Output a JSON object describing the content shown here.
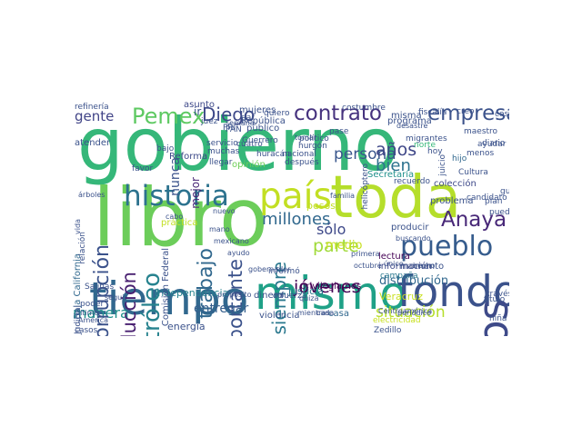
{
  "words": [
    {
      "text": "gobierno",
      "color": "#35b779"
    },
    {
      "text": "libro",
      "color": "#6ccd5a"
    },
    {
      "text": "toda",
      "color": "#b5de2b"
    },
    {
      "text": "tiempo",
      "color": "#31688e"
    },
    {
      "text": "mismo",
      "color": "#1fa187"
    },
    {
      "text": "fondo",
      "color": "#3b528b"
    },
    {
      "text": "Unidos",
      "color": "#3e4a89"
    },
    {
      "text": "país",
      "color": "#c2df23"
    },
    {
      "text": "historia",
      "color": "#2c728e"
    },
    {
      "text": "empresa",
      "color": "#3b528b"
    },
    {
      "text": "contrato",
      "color": "#46327e"
    },
    {
      "text": "pueblo",
      "color": "#365c8d"
    },
    {
      "text": "Anaya",
      "color": "#482878"
    },
    {
      "text": "Pemex",
      "color": "#5ec962"
    },
    {
      "text": "Diego",
      "color": "#3e4989"
    },
    {
      "text": "petróleo",
      "color": "#26828e"
    },
    {
      "text": "jóvenes",
      "color": "#440154"
    },
    {
      "text": "millones",
      "color": "#31688e"
    },
    {
      "text": "persona",
      "color": "#39568c"
    },
    {
      "text": "manera",
      "color": "#21918c"
    },
    {
      "text": "situación",
      "color": "#b5de2b"
    },
    {
      "text": "trabajo",
      "color": "#31688e"
    },
    {
      "text": "importante",
      "color": "#3b528b"
    },
    {
      "text": "corrupción",
      "color": "#3b528b"
    },
    {
      "text": "producción",
      "color": "#481f70"
    },
    {
      "text": "siempre",
      "color": "#2a788e"
    },
    {
      "text": "años",
      "color": "#3f4788"
    },
    {
      "text": "bien",
      "color": "#2c728e"
    },
    {
      "text": "parte",
      "color": "#a0da39"
    },
    {
      "text": "sólo",
      "color": "#3e4989"
    },
    {
      "text": "gente",
      "color": "#414487"
    },
    {
      "text": "medio",
      "color": "#c8e020"
    },
    {
      "text": "distribución",
      "color": "#31688e"
    },
    {
      "text": "entregar",
      "color": "#355f8d"
    },
    {
      "text": "Independencia",
      "color": "#26828e"
    },
    {
      "text": "Veracruz",
      "color": "#c8e020"
    },
    {
      "text": "nunca",
      "color": "#3b528b"
    },
    {
      "text": "ir",
      "color": "#3b528b"
    },
    {
      "text": "asunto",
      "color": "#3e4989"
    },
    {
      "text": "Reforma",
      "color": "#3e4a89"
    },
    {
      "text": "mejor",
      "color": "#482475"
    },
    {
      "text": "justicia",
      "color": "#2a788e"
    },
    {
      "text": "pesos",
      "color": "#c2df23"
    },
    {
      "text": "privilegiamos",
      "color": "#440154"
    },
    {
      "text": "dinero",
      "color": "#3b528b"
    },
    {
      "text": "fuerza",
      "color": "#3b528b"
    },
    {
      "text": "casa",
      "color": "#31688e"
    },
    {
      "text": "Secretaría",
      "color": "#21918c"
    },
    {
      "text": "colección",
      "color": "#3e4989"
    },
    {
      "text": "problema",
      "color": "#3b528b"
    },
    {
      "text": "lectura",
      "color": "#440154"
    },
    {
      "text": "información",
      "color": "#3e4989"
    },
    {
      "text": "campaña",
      "color": "#2a788e"
    },
    {
      "text": "energía",
      "color": "#3b528b"
    },
    {
      "text": "Baja California",
      "color": "#31688e"
    },
    {
      "text": "Comisión Federal",
      "color": "#3b528b"
    },
    {
      "text": "práctica",
      "color": "#c2df23"
    },
    {
      "text": "violencia",
      "color": "#3b528b"
    },
    {
      "text": "electricidad",
      "color": "#c8e020"
    },
    {
      "text": "relación",
      "color": "#3b528b"
    },
    {
      "text": "Salinas",
      "color": "#3b528b"
    },
    {
      "text": "opinión",
      "color": "#6ece58"
    },
    {
      "text": "público",
      "color": "#3b528b"
    },
    {
      "text": "República",
      "color": "#3b528b"
    },
    {
      "text": "hijo",
      "color": "#31688e"
    },
    {
      "text": "plan",
      "color": "#3b528b"
    },
    {
      "text": "norte",
      "color": "#35b779"
    },
    {
      "text": "hoy",
      "color": "#3b528b"
    },
    {
      "text": "Zedillo",
      "color": "#3b528b"
    },
    {
      "text": "producir",
      "color": "#3b528b"
    },
    {
      "text": "momento",
      "color": "#3b528b"
    },
    {
      "text": "político",
      "color": "#3b528b"
    },
    {
      "text": "nacional",
      "color": "#3b528b"
    },
    {
      "text": "cuatro",
      "color": "#3b528b"
    },
    {
      "text": "mujeres",
      "color": "#3b528b"
    },
    {
      "text": "helicóptero",
      "color": "#3b528b"
    },
    {
      "text": "costumbre",
      "color": "#3b528b"
    },
    {
      "text": "programa",
      "color": "#3b528b"
    },
    {
      "text": "juicio",
      "color": "#3b528b"
    },
    {
      "text": "costo",
      "color": "#3b528b"
    },
    {
      "text": "refinería",
      "color": "#3b528b"
    },
    {
      "text": "atender",
      "color": "#3b528b"
    },
    {
      "text": "pase",
      "color": "#3b528b"
    },
    {
      "text": "misma",
      "color": "#3b528b"
    },
    {
      "text": "creo",
      "color": "#3b528b"
    },
    {
      "text": "maestro",
      "color": "#3b528b"
    },
    {
      "text": "fiscalía",
      "color": "#3b528b"
    },
    {
      "text": "candidato",
      "color": "#3b528b"
    },
    {
      "text": "guerra",
      "color": "#3b528b"
    },
    {
      "text": "menos",
      "color": "#3b528b"
    },
    {
      "text": "Cultura",
      "color": "#3b528b"
    },
    {
      "text": "ayudar",
      "color": "#3b528b"
    },
    {
      "text": "diario",
      "color": "#3b528b"
    },
    {
      "text": "pueden",
      "color": "#3b528b"
    },
    {
      "text": "través",
      "color": "#3b528b"
    },
    {
      "text": "niña",
      "color": "#3b528b"
    },
    {
      "text": "título",
      "color": "#3b528b"
    },
    {
      "text": "migrantes",
      "color": "#3b528b"
    },
    {
      "text": "hurgón",
      "color": "#3b528b"
    },
    {
      "text": "después",
      "color": "#3b528b"
    },
    {
      "text": "Guerrero",
      "color": "#3b528b"
    },
    {
      "text": "servicio",
      "color": "#3b528b"
    },
    {
      "text": "muchas",
      "color": "#3b528b"
    },
    {
      "text": "llegar",
      "color": "#3b528b"
    },
    {
      "text": "bajo",
      "color": "#3b528b"
    },
    {
      "text": "favor",
      "color": "#3b528b"
    },
    {
      "text": "quiero",
      "color": "#3b528b"
    },
    {
      "text": "dar",
      "color": "#3b528b"
    },
    {
      "text": "PAN",
      "color": "#3b528b"
    },
    {
      "text": "PRI",
      "color": "#3b528b"
    },
    {
      "text": "juez",
      "color": "#3b528b"
    },
    {
      "text": "tomar",
      "color": "#3b528b"
    },
    {
      "text": "semana",
      "color": "#3b528b"
    },
    {
      "text": "cabo",
      "color": "#3b528b"
    },
    {
      "text": "huracán",
      "color": "#3b528b"
    },
    {
      "text": "dio",
      "color": "#3b528b"
    },
    {
      "text": "informó",
      "color": "#3b528b"
    },
    {
      "text": "gobernador",
      "color": "#3b528b"
    },
    {
      "text": "mexicano",
      "color": "#3b528b"
    },
    {
      "text": "ayudo",
      "color": "#3b528b"
    },
    {
      "text": "mano",
      "color": "#3b528b"
    },
    {
      "text": "nuevo",
      "color": "#3b528b"
    },
    {
      "text": "quizá",
      "color": "#3b528b"
    },
    {
      "text": "mientras",
      "color": "#3b528b"
    },
    {
      "text": "cada",
      "color": "#3b528b"
    },
    {
      "text": "recuerdo",
      "color": "#3b528b"
    },
    {
      "text": "Centroamérica",
      "color": "#3b528b"
    },
    {
      "text": "buscando",
      "color": "#3b528b"
    },
    {
      "text": "único",
      "color": "#3b528b"
    },
    {
      "text": "periódico",
      "color": "#3b528b"
    },
    {
      "text": "octubre",
      "color": "#3b528b"
    },
    {
      "text": "primera",
      "color": "#3b528b"
    },
    {
      "text": "familia",
      "color": "#3b528b"
    },
    {
      "text": "Poder Judicial",
      "color": "#3b528b"
    },
    {
      "text": "casos",
      "color": "#3b528b"
    },
    {
      "text": "poder",
      "color": "#3b528b"
    },
    {
      "text": "último",
      "color": "#3b528b"
    },
    {
      "text": "seguir",
      "color": "#3b528b"
    },
    {
      "text": "América",
      "color": "#3b528b"
    },
    {
      "text": "propósito",
      "color": "#3b528b"
    },
    {
      "text": "desastre",
      "color": "#3b528b"
    },
    {
      "text": "hecho",
      "color": "#3b528b"
    },
    {
      "text": "vida",
      "color": "#3b528b"
    },
    {
      "text": "árboles",
      "color": "#3b528b"
    }
  ]
}
